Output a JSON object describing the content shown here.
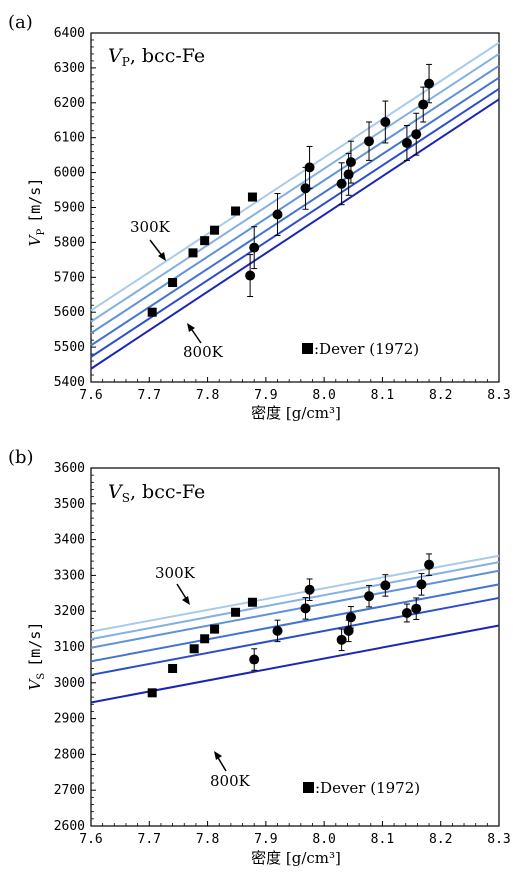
{
  "chart_data": [
    {
      "panel_label": "(a)",
      "type": "line+scatter",
      "title": "V_P, bcc-Fe",
      "title_var": "V",
      "title_sub": "P",
      "title_rest": ",  bcc-Fe",
      "xlabel": "密度 [g/cm³]",
      "ylabel_var": "V",
      "ylabel_sub": "P",
      "ylabel_unit": "[m/s]",
      "xlim": [
        7.6,
        8.3
      ],
      "ylim": [
        5400,
        6400
      ],
      "xticks": [
        7.6,
        7.7,
        7.8,
        7.9,
        8.0,
        8.1,
        8.2,
        8.3
      ],
      "yticks": [
        5400,
        5500,
        5600,
        5700,
        5800,
        5900,
        6000,
        6100,
        6200,
        6300,
        6400
      ],
      "lines": [
        {
          "color": "#a9cbe9",
          "x": [
            7.6,
            8.3
          ],
          "y": [
            5605,
            6372
          ]
        },
        {
          "color": "#84b1e0",
          "x": [
            7.6,
            8.3
          ],
          "y": [
            5573,
            6340
          ]
        },
        {
          "color": "#5f92da",
          "x": [
            7.6,
            8.3
          ],
          "y": [
            5540,
            6306
          ]
        },
        {
          "color": "#4274d2",
          "x": [
            7.6,
            8.3
          ],
          "y": [
            5505,
            6272
          ]
        },
        {
          "color": "#2c4ecb",
          "x": [
            7.6,
            8.3
          ],
          "y": [
            5472,
            6240
          ]
        },
        {
          "color": "#1a26b5",
          "x": [
            7.6,
            8.3
          ],
          "y": [
            5438,
            6210
          ]
        }
      ],
      "dever": {
        "x": [
          7.705,
          7.74,
          7.775,
          7.795,
          7.812,
          7.848,
          7.877
        ],
        "y": [
          5600,
          5685,
          5770,
          5805,
          5835,
          5890,
          5930
        ]
      },
      "circles": [
        {
          "x": 7.873,
          "y": 5705,
          "err": 60
        },
        {
          "x": 7.88,
          "y": 5785,
          "err": 60
        },
        {
          "x": 7.92,
          "y": 5880,
          "err": 60
        },
        {
          "x": 7.968,
          "y": 5955,
          "err": 60
        },
        {
          "x": 7.975,
          "y": 6015,
          "err": 60
        },
        {
          "x": 8.03,
          "y": 5968,
          "err": 60
        },
        {
          "x": 8.042,
          "y": 5995,
          "err": 60
        },
        {
          "x": 8.046,
          "y": 6030,
          "err": 60
        },
        {
          "x": 8.077,
          "y": 6090,
          "err": 55
        },
        {
          "x": 8.105,
          "y": 6145,
          "err": 60
        },
        {
          "x": 8.142,
          "y": 6085,
          "err": 50
        },
        {
          "x": 8.158,
          "y": 6110,
          "err": 60
        },
        {
          "x": 8.17,
          "y": 6195,
          "err": 50
        },
        {
          "x": 8.18,
          "y": 6255,
          "err": 55
        }
      ],
      "annotation_top": "300K",
      "annotation_bottom": "800K",
      "legend_text": ":Dever (1972)"
    },
    {
      "panel_label": "(b)",
      "type": "line+scatter",
      "title": "V_S, bcc-Fe",
      "title_var": "V",
      "title_sub": "S",
      "title_rest": ",  bcc-Fe",
      "xlabel": "密度 [g/cm³]",
      "ylabel_var": "V",
      "ylabel_sub": "S",
      "ylabel_unit": "[m/s]",
      "xlim": [
        7.6,
        8.3
      ],
      "ylim": [
        2600,
        3600
      ],
      "xticks": [
        7.6,
        7.7,
        7.8,
        7.9,
        8.0,
        8.1,
        8.2,
        8.3
      ],
      "yticks": [
        2600,
        2700,
        2800,
        2900,
        3000,
        3100,
        3200,
        3300,
        3400,
        3500,
        3600
      ],
      "lines": [
        {
          "color": "#a9cbe9",
          "x": [
            7.6,
            8.3
          ],
          "y": [
            3143,
            3355
          ]
        },
        {
          "color": "#84b1e0",
          "x": [
            7.6,
            8.3
          ],
          "y": [
            3122,
            3337
          ]
        },
        {
          "color": "#5f92da",
          "x": [
            7.6,
            8.3
          ],
          "y": [
            3098,
            3313
          ]
        },
        {
          "color": "#4274d2",
          "x": [
            7.6,
            8.3
          ],
          "y": [
            3060,
            3275
          ]
        },
        {
          "color": "#2c4ecb",
          "x": [
            7.6,
            8.3
          ],
          "y": [
            3022,
            3237
          ]
        },
        {
          "color": "#1a26b5",
          "x": [
            7.6,
            8.3
          ],
          "y": [
            2945,
            3160
          ]
        }
      ],
      "dever": {
        "x": [
          7.705,
          7.74,
          7.777,
          7.795,
          7.812,
          7.848,
          7.877
        ],
        "y": [
          2972,
          3040,
          3095,
          3123,
          3150,
          3197,
          3225
        ]
      },
      "circles": [
        {
          "x": 7.88,
          "y": 3065,
          "err": 30
        },
        {
          "x": 7.92,
          "y": 3145,
          "err": 30
        },
        {
          "x": 7.968,
          "y": 3208,
          "err": 30
        },
        {
          "x": 7.975,
          "y": 3260,
          "err": 30
        },
        {
          "x": 8.03,
          "y": 3120,
          "err": 30
        },
        {
          "x": 8.042,
          "y": 3145,
          "err": 30
        },
        {
          "x": 8.046,
          "y": 3183,
          "err": 30
        },
        {
          "x": 8.077,
          "y": 3242,
          "err": 30
        },
        {
          "x": 8.105,
          "y": 3272,
          "err": 30
        },
        {
          "x": 8.142,
          "y": 3195,
          "err": 25
        },
        {
          "x": 8.158,
          "y": 3207,
          "err": 30
        },
        {
          "x": 8.167,
          "y": 3275,
          "err": 30
        },
        {
          "x": 8.18,
          "y": 3330,
          "err": 30
        }
      ],
      "annotation_top": "300K",
      "annotation_bottom": "800K",
      "legend_text": ":Dever (1972)"
    }
  ]
}
